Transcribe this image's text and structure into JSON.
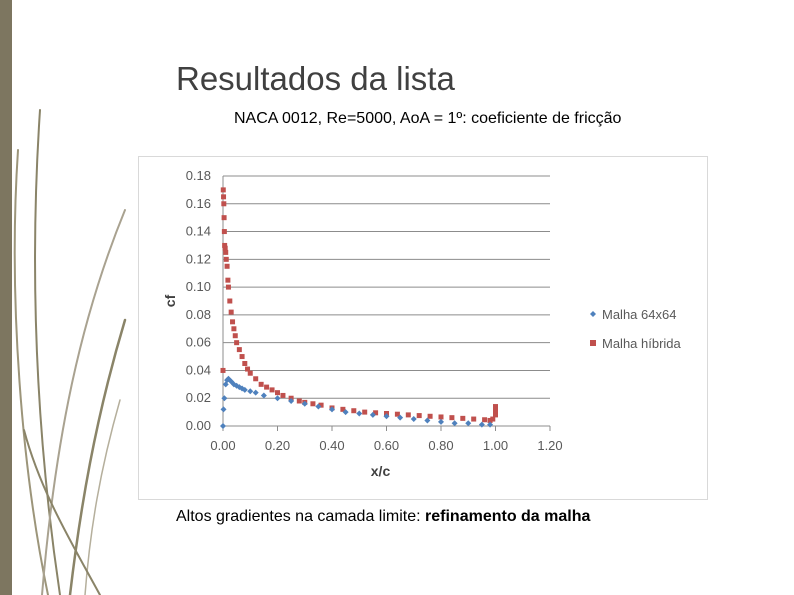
{
  "slide": {
    "title": "Resultados da lista",
    "subtitle": "NACA 0012, Re=5000, AoA = 1º: coeficiente de fricção",
    "caption_regular": "Altos gradientes na camada limite: ",
    "caption_bold": "refinamento da malha"
  },
  "colors": {
    "sidebar": "#7d7660",
    "series_1": "#4f81bd",
    "series_2": "#c0504d",
    "grid": "#8c8c8c"
  },
  "chart_data": {
    "type": "scatter",
    "title": "",
    "xlabel": "x/c",
    "ylabel": "cf",
    "xlim": [
      0,
      1.2
    ],
    "ylim": [
      0,
      0.18
    ],
    "x_ticks": [
      "0.00",
      "0.20",
      "0.40",
      "0.60",
      "0.80",
      "1.00",
      "1.20"
    ],
    "y_ticks": [
      "0.00",
      "0.02",
      "0.04",
      "0.06",
      "0.08",
      "0.10",
      "0.12",
      "0.14",
      "0.16",
      "0.18"
    ],
    "grid": true,
    "legend_position": "right",
    "series": [
      {
        "name": "Malha 64x64",
        "marker": "diamond",
        "x": [
          0.0,
          0.002,
          0.005,
          0.01,
          0.015,
          0.02,
          0.03,
          0.04,
          0.05,
          0.06,
          0.07,
          0.08,
          0.1,
          0.12,
          0.15,
          0.2,
          0.25,
          0.3,
          0.35,
          0.4,
          0.45,
          0.5,
          0.55,
          0.6,
          0.65,
          0.7,
          0.75,
          0.8,
          0.85,
          0.9,
          0.95,
          0.98
        ],
        "y": [
          0.0,
          0.012,
          0.02,
          0.03,
          0.033,
          0.034,
          0.032,
          0.03,
          0.029,
          0.028,
          0.027,
          0.026,
          0.025,
          0.024,
          0.022,
          0.02,
          0.018,
          0.016,
          0.014,
          0.012,
          0.01,
          0.009,
          0.008,
          0.007,
          0.006,
          0.005,
          0.004,
          0.003,
          0.002,
          0.002,
          0.001,
          0.001
        ]
      },
      {
        "name": "Malha híbrida",
        "marker": "square",
        "x": [
          0.0,
          0.001,
          0.002,
          0.003,
          0.004,
          0.005,
          0.006,
          0.008,
          0.01,
          0.012,
          0.015,
          0.018,
          0.02,
          0.025,
          0.03,
          0.035,
          0.04,
          0.045,
          0.05,
          0.06,
          0.07,
          0.08,
          0.09,
          0.1,
          0.12,
          0.14,
          0.16,
          0.18,
          0.2,
          0.22,
          0.25,
          0.28,
          0.3,
          0.33,
          0.36,
          0.4,
          0.44,
          0.48,
          0.52,
          0.56,
          0.6,
          0.64,
          0.68,
          0.72,
          0.76,
          0.8,
          0.84,
          0.88,
          0.92,
          0.96,
          0.98,
          0.99,
          1.0,
          1.0,
          1.0
        ],
        "y": [
          0.04,
          0.17,
          0.165,
          0.16,
          0.15,
          0.14,
          0.13,
          0.128,
          0.125,
          0.12,
          0.115,
          0.105,
          0.1,
          0.09,
          0.082,
          0.075,
          0.07,
          0.065,
          0.06,
          0.055,
          0.05,
          0.045,
          0.041,
          0.038,
          0.034,
          0.03,
          0.028,
          0.026,
          0.024,
          0.022,
          0.02,
          0.018,
          0.017,
          0.016,
          0.015,
          0.013,
          0.012,
          0.011,
          0.01,
          0.0095,
          0.009,
          0.0085,
          0.008,
          0.0075,
          0.007,
          0.0065,
          0.006,
          0.0055,
          0.005,
          0.0045,
          0.004,
          0.005,
          0.008,
          0.011,
          0.014
        ]
      }
    ]
  }
}
